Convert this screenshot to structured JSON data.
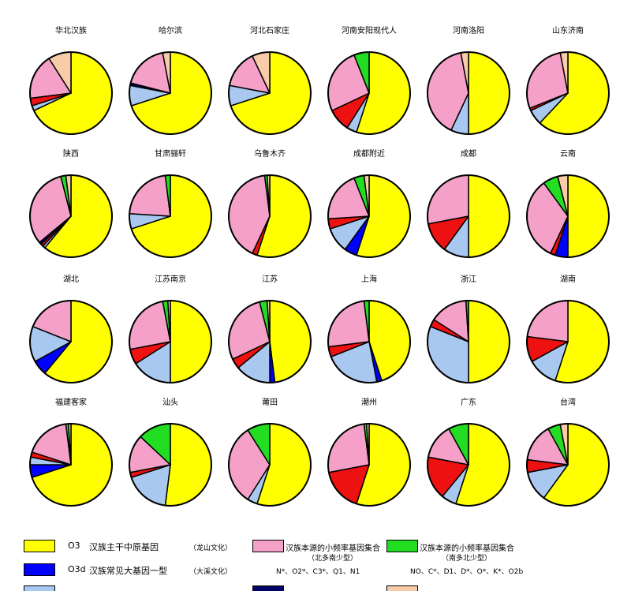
{
  "colors": {
    "O3": "#ffff00",
    "O3d": "#0000ff",
    "light_blue": "#a8c8f0",
    "red": "#ee1111",
    "navy": "#000066",
    "pink": "#f4a0c8",
    "green": "#22dd22",
    "peach": "#f8cca8"
  },
  "legend": {
    "row1": {
      "code": "O3",
      "name": "汉族主干中原基因",
      "culture": "（龙山文化）",
      "pink_label": "汉族本源的小频率基因集合",
      "pink_sub": "（北多南少型）",
      "green_label": "汉族本源的小频率基因集合",
      "green_sub": "（南多北少型）"
    },
    "row2": {
      "code": "O3d",
      "name": "汉族常见大基因一型",
      "culture": "（大溪文化）",
      "pink_list": "N*、O2*、C3*、Q1、N1",
      "green_list": "NO、C*、D1、D*、O*、K*、O2b"
    }
  },
  "chart_data": {
    "type": "pie",
    "series_colors": [
      "O3",
      "O3d",
      "light_blue",
      "red",
      "navy",
      "pink",
      "green",
      "peach"
    ],
    "pies": [
      {
        "title": "华北汉族",
        "values": [
          68,
          0,
          2,
          3,
          0,
          18,
          0,
          9
        ]
      },
      {
        "title": "哈尔滨",
        "values": [
          70,
          0,
          8,
          0,
          1,
          18,
          0,
          3
        ]
      },
      {
        "title": "河北石家庄",
        "values": [
          70,
          0,
          8,
          0,
          0,
          15,
          0,
          7
        ]
      },
      {
        "title": "河南安阳现代人",
        "values": [
          55,
          0,
          4,
          9,
          0,
          26,
          6,
          0
        ]
      },
      {
        "title": "河南洛阳",
        "values": [
          50,
          0,
          7,
          0,
          0,
          40,
          0,
          3
        ]
      },
      {
        "title": "山东济南",
        "values": [
          62,
          0,
          6,
          1,
          0,
          28,
          0,
          3
        ]
      },
      {
        "title": "陕西",
        "values": [
          61,
          0,
          1,
          1,
          1,
          32,
          2,
          2
        ]
      },
      {
        "title": "甘肃骊轩",
        "values": [
          70,
          0,
          6,
          0,
          0,
          22,
          2,
          0
        ]
      },
      {
        "title": "乌鲁木齐",
        "values": [
          55,
          0,
          0,
          2,
          0,
          41,
          1,
          1
        ]
      },
      {
        "title": "成都附近",
        "values": [
          55,
          5,
          10,
          4,
          0,
          20,
          4,
          2
        ]
      },
      {
        "title": "成都",
        "values": [
          50,
          0,
          10,
          12,
          0,
          28,
          0,
          0
        ]
      },
      {
        "title": "云南",
        "values": [
          50,
          5,
          0,
          2,
          0,
          33,
          6,
          4
        ]
      },
      {
        "title": "湖北",
        "values": [
          61,
          6,
          14,
          0,
          0,
          19,
          0,
          0
        ]
      },
      {
        "title": "江苏南京",
        "values": [
          50,
          0,
          16,
          6,
          0,
          25,
          2,
          1
        ]
      },
      {
        "title": "江苏",
        "values": [
          48,
          2,
          14,
          4,
          0,
          28,
          3,
          1
        ]
      },
      {
        "title": "上海",
        "values": [
          45,
          2,
          22,
          4,
          0,
          25,
          2,
          0
        ]
      },
      {
        "title": "浙江",
        "values": [
          50,
          0,
          31,
          3,
          0,
          15,
          1,
          0
        ]
      },
      {
        "title": "湖南",
        "values": [
          55,
          0,
          12,
          10,
          0,
          23,
          0,
          0
        ]
      },
      {
        "title": "福建客家",
        "values": [
          70,
          5,
          3,
          2,
          0,
          18,
          1,
          1
        ]
      },
      {
        "title": "汕头",
        "values": [
          52,
          0,
          18,
          2,
          0,
          15,
          13,
          0
        ]
      },
      {
        "title": "莆田",
        "values": [
          55,
          0,
          4,
          0,
          0,
          32,
          9,
          0
        ]
      },
      {
        "title": "潮州",
        "values": [
          55,
          0,
          0,
          17,
          0,
          26,
          1,
          1
        ]
      },
      {
        "title": "广东",
        "values": [
          55,
          0,
          6,
          17,
          0,
          14,
          8,
          0
        ]
      },
      {
        "title": "台湾",
        "values": [
          60,
          0,
          12,
          5,
          0,
          15,
          5,
          3
        ]
      }
    ]
  }
}
